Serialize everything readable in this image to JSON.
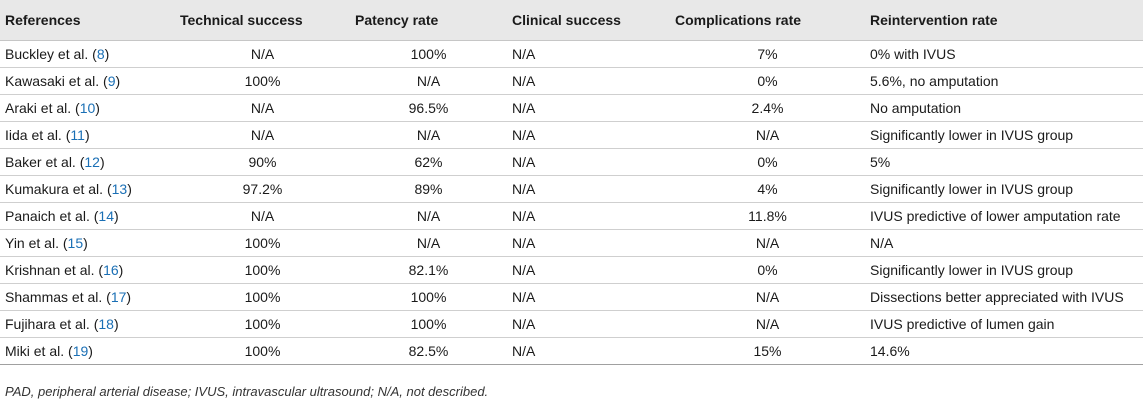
{
  "headers": {
    "references": "References",
    "technical": "Technical success",
    "patency": "Patency rate",
    "clinical": "Clinical success",
    "complications": "Complications rate",
    "reintervention": "Reintervention rate"
  },
  "rows": [
    {
      "author": "Buckley et al.",
      "ref": "8",
      "technical": "N/A",
      "patency": "100%",
      "clinical": "N/A",
      "complications": "7%",
      "reintervention": "0% with IVUS"
    },
    {
      "author": "Kawasaki et al.",
      "ref": "9",
      "technical": "100%",
      "patency": "N/A",
      "clinical": "N/A",
      "complications": "0%",
      "reintervention": "5.6%, no amputation"
    },
    {
      "author": "Araki et al.",
      "ref": "10",
      "technical": "N/A",
      "patency": "96.5%",
      "clinical": "N/A",
      "complications": "2.4%",
      "reintervention": "No amputation"
    },
    {
      "author": "Iida et al.",
      "ref": "11",
      "technical": "N/A",
      "patency": "N/A",
      "clinical": "N/A",
      "complications": "N/A",
      "reintervention": "Significantly lower in IVUS group"
    },
    {
      "author": "Baker et al.",
      "ref": "12",
      "technical": "90%",
      "patency": "62%",
      "clinical": "N/A",
      "complications": "0%",
      "reintervention": "5%"
    },
    {
      "author": "Kumakura et al.",
      "ref": "13",
      "technical": "97.2%",
      "patency": "89%",
      "clinical": "N/A",
      "complications": "4%",
      "reintervention": "Significantly lower in IVUS group"
    },
    {
      "author": "Panaich et al.",
      "ref": "14",
      "technical": "N/A",
      "patency": "N/A",
      "clinical": "N/A",
      "complications": "11.8%",
      "reintervention": "IVUS predictive of lower amputation rate"
    },
    {
      "author": "Yin et al.",
      "ref": "15",
      "technical": "100%",
      "patency": "N/A",
      "clinical": "N/A",
      "complications": "N/A",
      "reintervention": "N/A"
    },
    {
      "author": "Krishnan et al.",
      "ref": "16",
      "technical": "100%",
      "patency": "82.1%",
      "clinical": "N/A",
      "complications": "0%",
      "reintervention": "Significantly lower in IVUS group"
    },
    {
      "author": "Shammas et al.",
      "ref": "17",
      "technical": "100%",
      "patency": "100%",
      "clinical": "N/A",
      "complications": "N/A",
      "reintervention": "Dissections better appreciated with IVUS"
    },
    {
      "author": "Fujihara et al.",
      "ref": "18",
      "technical": "100%",
      "patency": "100%",
      "clinical": "N/A",
      "complications": "N/A",
      "reintervention": "IVUS predictive of lumen gain"
    },
    {
      "author": "Miki et al.",
      "ref": "19",
      "technical": "100%",
      "patency": "82.5%",
      "clinical": "N/A",
      "complications": "15%",
      "reintervention": "14.6%"
    }
  ],
  "footnote": "PAD, peripheral arterial disease; IVUS, intravascular ultrasound; N/A, not described."
}
